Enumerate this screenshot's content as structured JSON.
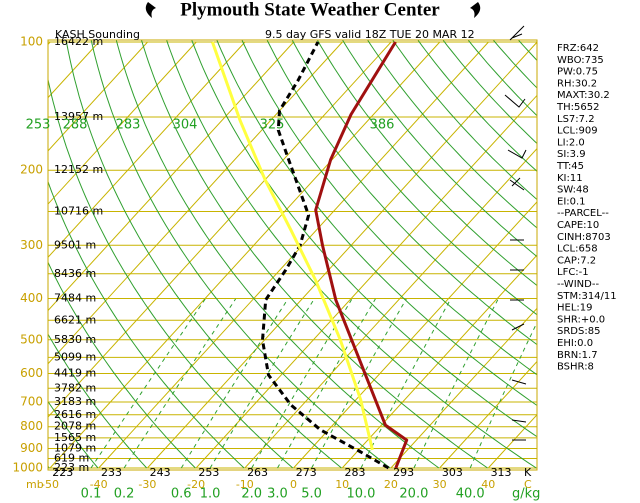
{
  "chart_data": {
    "type": "skew-t",
    "title": "Plymouth State Weather Center",
    "station": "KASH Sounding",
    "subtitle": "9.5 day GFS valid 18Z TUE 20 MAR 12",
    "pressure_unit": "mb",
    "temperature_unit": "C",
    "theta_unit": "K",
    "mixing_unit": "g/kg",
    "ylim": [
      100,
      1000
    ],
    "xlim": [
      -50,
      50
    ],
    "yticks": [
      100,
      200,
      300,
      400,
      500,
      600,
      700,
      800,
      900,
      1000
    ],
    "xticks": [
      -50,
      -40,
      -30,
      -20,
      -10,
      0,
      10,
      20,
      30,
      40
    ],
    "heights": [
      {
        "pressure": 100,
        "label": "16422 m"
      },
      {
        "pressure": 150,
        "label": "13957 m"
      },
      {
        "pressure": 200,
        "label": "12152 m"
      },
      {
        "pressure": 250,
        "label": "10716 m"
      },
      {
        "pressure": 300,
        "label": "9501 m"
      },
      {
        "pressure": 350,
        "label": "8436 m"
      },
      {
        "pressure": 400,
        "label": "7484 m"
      },
      {
        "pressure": 450,
        "label": "6621 m"
      },
      {
        "pressure": 500,
        "label": "5830 m"
      },
      {
        "pressure": 550,
        "label": "5099 m"
      },
      {
        "pressure": 600,
        "label": "4419 m"
      },
      {
        "pressure": 650,
        "label": "3782 m"
      },
      {
        "pressure": 700,
        "label": "3183 m"
      },
      {
        "pressure": 750,
        "label": "2616 m"
      },
      {
        "pressure": 800,
        "label": "2078 m"
      },
      {
        "pressure": 850,
        "label": "1565 m"
      },
      {
        "pressure": 900,
        "label": "1079 m"
      },
      {
        "pressure": 950,
        "label": "619 m"
      },
      {
        "pressure": 1000,
        "label": "223 m"
      }
    ],
    "theta_ticks": [
      223,
      233,
      243,
      253,
      263,
      273,
      283,
      293,
      303,
      313
    ],
    "mixing_ticks": [
      0.1,
      0.2,
      0.6,
      {
        "value": 1,
        "label": "1.0"
      },
      {
        "value": 2,
        "label": "2.0"
      },
      {
        "value": 3,
        "label": "3.0"
      },
      {
        "value": 5,
        "label": "5.0"
      },
      {
        "value": 10,
        "label": "10.0"
      },
      {
        "value": 20,
        "label": "20.0"
      },
      {
        "value": 40,
        "label": "40.0"
      }
    ],
    "theta_e_labels": [
      "253",
      "288",
      "283",
      "304",
      "325",
      "386"
    ],
    "series": [
      {
        "color": "#a01010",
        "dash": false,
        "width": 3,
        "pressure": [
          1000,
          860,
          793,
          403,
          300,
          248,
          189,
          148,
          100
        ],
        "values": [
          21,
          18,
          10.8,
          -22.9,
          -35.9,
          -43.9,
          -50.3,
          -54.6,
          -59.1
        ]
      },
      {
        "color": "#000000",
        "dash": true,
        "width": 3,
        "pressure": [
          1000,
          917,
          814,
          711,
          605,
          501,
          403,
          343,
          300,
          255,
          222,
          189,
          161,
          145,
          123,
          100
        ],
        "values": [
          19.5,
          10.8,
          -1.6,
          -12.4,
          -22.6,
          -30.4,
          -37.3,
          -38.8,
          -40.5,
          -44.4,
          -51.1,
          -58.9,
          -66.6,
          -70,
          -71.9,
          -75
        ]
      },
      {
        "color": "#ffff40",
        "dash": false,
        "width": 3,
        "pressure": [
          907,
          692,
          501,
          362,
          276,
          211,
          153,
          100
        ],
        "values": [
          12.8,
          1.0,
          -14.4,
          -30.8,
          -45.3,
          -59.9,
          -76.2,
          -96.7
        ]
      }
    ],
    "indices": [
      "FRZ:642",
      "WBO:735",
      "PW:0.75",
      "RH:30.2",
      "MAXT:30.2",
      "TH:5652",
      "LS7:7.2",
      "LCL:909",
      "LI:2.0",
      "SI:3.9",
      "TT:45",
      "KI:11",
      "SW:48",
      "EI:0.1",
      "--PARCEL--",
      "CAPE:10",
      "CINH:8703",
      "LCL:658",
      "CAP:7.2",
      "LFC:-1",
      "--WIND--",
      "STM:314/11",
      "HEL:19",
      "SHR:+0.0",
      "SRDS:85",
      "EHI:0.0",
      "BRN:1.7",
      "BSHR:8"
    ]
  }
}
